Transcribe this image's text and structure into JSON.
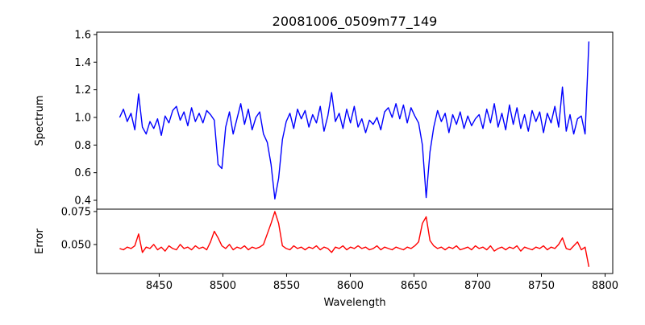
{
  "chart_data": [
    {
      "type": "line",
      "title": "20081006_0509m77_149",
      "xlabel": "",
      "ylabel": "Spectrum",
      "xlim": [
        8401,
        8806
      ],
      "ylim": [
        0.336,
        1.617
      ],
      "xticks": [
        8450,
        8500,
        8550,
        8600,
        8650,
        8700,
        8750,
        8800
      ],
      "yticks": [
        "0.4",
        "0.6",
        "0.8",
        "1.0",
        "1.2",
        "1.4",
        "1.6"
      ],
      "color": "#0000ff",
      "x_start": 8419,
      "x_step": 2.97,
      "values": [
        1.0,
        1.06,
        0.97,
        1.03,
        0.91,
        1.17,
        0.93,
        0.88,
        0.97,
        0.92,
        0.99,
        0.87,
        1.01,
        0.96,
        1.05,
        1.08,
        0.98,
        1.04,
        0.94,
        1.07,
        0.97,
        1.03,
        0.96,
        1.05,
        1.02,
        0.98,
        0.66,
        0.63,
        0.93,
        1.04,
        0.88,
        0.99,
        1.1,
        0.95,
        1.06,
        0.91,
        1.0,
        1.04,
        0.88,
        0.82,
        0.66,
        0.41,
        0.56,
        0.84,
        0.97,
        1.03,
        0.92,
        1.06,
        0.99,
        1.05,
        0.93,
        1.02,
        0.96,
        1.08,
        0.9,
        1.01,
        1.18,
        0.97,
        1.03,
        0.92,
        1.06,
        0.96,
        1.08,
        0.93,
        0.99,
        0.89,
        0.98,
        0.95,
        1.0,
        0.91,
        1.04,
        1.07,
        1.0,
        1.1,
        0.99,
        1.09,
        0.96,
        1.07,
        1.01,
        0.96,
        0.8,
        0.42,
        0.75,
        0.93,
        1.05,
        0.97,
        1.03,
        0.89,
        1.02,
        0.95,
        1.04,
        0.92,
        1.01,
        0.94,
        0.99,
        1.02,
        0.92,
        1.06,
        0.96,
        1.1,
        0.93,
        1.03,
        0.91,
        1.09,
        0.95,
        1.07,
        0.92,
        1.02,
        0.9,
        1.05,
        0.97,
        1.04,
        0.89,
        1.03,
        0.96,
        1.08,
        0.93,
        1.22,
        0.9,
        1.02,
        0.88,
        0.99,
        1.01,
        0.88,
        1.55
      ]
    },
    {
      "type": "line",
      "title": "",
      "xlabel": "Wavelength",
      "ylabel": "Error",
      "xlim": [
        8401,
        8806
      ],
      "ylim": [
        0.028,
        0.0768
      ],
      "xticks": [
        8450,
        8500,
        8550,
        8600,
        8650,
        8700,
        8750,
        8800
      ],
      "yticks": [
        "0.050",
        "0.075"
      ],
      "color": "#ff0000",
      "x_start": 8419,
      "x_step": 2.97,
      "values": [
        0.047,
        0.046,
        0.048,
        0.047,
        0.049,
        0.058,
        0.044,
        0.048,
        0.047,
        0.05,
        0.046,
        0.048,
        0.045,
        0.049,
        0.047,
        0.046,
        0.05,
        0.047,
        0.048,
        0.046,
        0.049,
        0.047,
        0.048,
        0.046,
        0.052,
        0.06,
        0.055,
        0.049,
        0.047,
        0.05,
        0.046,
        0.048,
        0.047,
        0.049,
        0.046,
        0.048,
        0.047,
        0.048,
        0.05,
        0.058,
        0.066,
        0.075,
        0.066,
        0.049,
        0.047,
        0.046,
        0.049,
        0.047,
        0.048,
        0.046,
        0.048,
        0.047,
        0.049,
        0.046,
        0.048,
        0.047,
        0.044,
        0.048,
        0.047,
        0.049,
        0.046,
        0.048,
        0.047,
        0.049,
        0.047,
        0.048,
        0.046,
        0.047,
        0.049,
        0.046,
        0.048,
        0.047,
        0.046,
        0.048,
        0.047,
        0.046,
        0.048,
        0.047,
        0.049,
        0.052,
        0.066,
        0.071,
        0.053,
        0.049,
        0.047,
        0.048,
        0.046,
        0.048,
        0.047,
        0.049,
        0.046,
        0.047,
        0.048,
        0.046,
        0.049,
        0.047,
        0.048,
        0.046,
        0.049,
        0.045,
        0.047,
        0.048,
        0.046,
        0.048,
        0.047,
        0.049,
        0.045,
        0.048,
        0.047,
        0.046,
        0.048,
        0.047,
        0.049,
        0.046,
        0.048,
        0.047,
        0.05,
        0.055,
        0.047,
        0.046,
        0.049,
        0.052,
        0.046,
        0.048,
        0.033
      ]
    }
  ]
}
